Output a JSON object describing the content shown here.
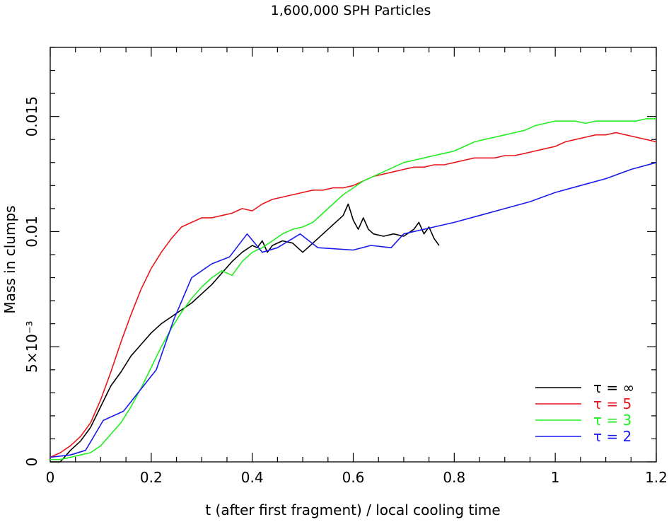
{
  "chart_data": {
    "type": "line",
    "title": "1,600,000 SPH Particles",
    "xlabel": "t (after first fragment) / local cooling time",
    "ylabel": "Mass in clumps",
    "xlim": [
      0,
      1.2
    ],
    "ylim": [
      0,
      0.018
    ],
    "x_ticks": [
      {
        "value": 0,
        "label": "0"
      },
      {
        "value": 0.2,
        "label": "0.2"
      },
      {
        "value": 0.4,
        "label": "0.4"
      },
      {
        "value": 0.6,
        "label": "0.6"
      },
      {
        "value": 0.8,
        "label": "0.8"
      },
      {
        "value": 1.0,
        "label": "1"
      },
      {
        "value": 1.2,
        "label": "1.2"
      }
    ],
    "y_ticks": [
      {
        "value": 0,
        "label": "0"
      },
      {
        "value": 0.005,
        "label": "5×10⁻³"
      },
      {
        "value": 0.01,
        "label": "0.01"
      },
      {
        "value": 0.015,
        "label": "0.015"
      }
    ],
    "grid": false,
    "legend_position": "bottom-right",
    "series": [
      {
        "name": "τ = ∞",
        "color": "#000000",
        "x": [
          0.0,
          0.02,
          0.04,
          0.06,
          0.08,
          0.1,
          0.12,
          0.14,
          0.16,
          0.18,
          0.2,
          0.22,
          0.24,
          0.26,
          0.28,
          0.3,
          0.32,
          0.34,
          0.36,
          0.38,
          0.4,
          0.41,
          0.42,
          0.43,
          0.44,
          0.46,
          0.48,
          0.49,
          0.5,
          0.52,
          0.54,
          0.56,
          0.58,
          0.59,
          0.6,
          0.61,
          0.62,
          0.63,
          0.64,
          0.66,
          0.68,
          0.7,
          0.72,
          0.73,
          0.74,
          0.75,
          0.76,
          0.77
        ],
        "values": [
          0.0,
          0.0,
          0.0005,
          0.0009,
          0.0015,
          0.0024,
          0.0033,
          0.0039,
          0.0046,
          0.0051,
          0.0056,
          0.006,
          0.0063,
          0.0066,
          0.0069,
          0.0073,
          0.0077,
          0.0082,
          0.0087,
          0.0091,
          0.0094,
          0.0093,
          0.0096,
          0.0091,
          0.0094,
          0.0096,
          0.0095,
          0.0093,
          0.0091,
          0.0095,
          0.0099,
          0.0103,
          0.0107,
          0.0112,
          0.0105,
          0.0101,
          0.0106,
          0.0101,
          0.0099,
          0.0098,
          0.0099,
          0.0098,
          0.0101,
          0.0104,
          0.0099,
          0.0102,
          0.0097,
          0.0094
        ]
      },
      {
        "name": "τ = 5",
        "color": "#e8161c",
        "x": [
          0.0,
          0.02,
          0.04,
          0.06,
          0.08,
          0.1,
          0.12,
          0.14,
          0.16,
          0.18,
          0.2,
          0.22,
          0.24,
          0.26,
          0.28,
          0.3,
          0.32,
          0.34,
          0.36,
          0.38,
          0.4,
          0.42,
          0.44,
          0.46,
          0.48,
          0.5,
          0.52,
          0.54,
          0.56,
          0.58,
          0.6,
          0.62,
          0.64,
          0.66,
          0.68,
          0.7,
          0.72,
          0.74,
          0.76,
          0.78,
          0.8,
          0.82,
          0.84,
          0.86,
          0.88,
          0.9,
          0.92,
          0.94,
          0.96,
          0.98,
          1.0,
          1.02,
          1.04,
          1.06,
          1.08,
          1.1,
          1.12,
          1.14,
          1.16,
          1.18,
          1.2
        ],
        "values": [
          0.0002,
          0.0004,
          0.0007,
          0.0011,
          0.0017,
          0.0027,
          0.0039,
          0.0052,
          0.0064,
          0.0075,
          0.0084,
          0.0091,
          0.0097,
          0.0102,
          0.0104,
          0.0106,
          0.0106,
          0.0107,
          0.0108,
          0.011,
          0.0109,
          0.0112,
          0.0114,
          0.0115,
          0.0116,
          0.0117,
          0.0118,
          0.0118,
          0.0119,
          0.0119,
          0.012,
          0.0122,
          0.0124,
          0.0125,
          0.0126,
          0.0127,
          0.0128,
          0.0128,
          0.0129,
          0.0129,
          0.013,
          0.0131,
          0.0132,
          0.0132,
          0.0132,
          0.0133,
          0.0133,
          0.0134,
          0.0135,
          0.0136,
          0.0137,
          0.0139,
          0.014,
          0.0141,
          0.0142,
          0.0142,
          0.0143,
          0.0142,
          0.0141,
          0.014,
          0.0139
        ]
      },
      {
        "name": "τ = 3",
        "color": "#22ee22",
        "x": [
          0.0,
          0.02,
          0.04,
          0.06,
          0.08,
          0.1,
          0.12,
          0.14,
          0.16,
          0.18,
          0.2,
          0.22,
          0.24,
          0.26,
          0.28,
          0.3,
          0.32,
          0.34,
          0.36,
          0.38,
          0.4,
          0.42,
          0.44,
          0.46,
          0.48,
          0.5,
          0.52,
          0.54,
          0.56,
          0.58,
          0.6,
          0.62,
          0.64,
          0.66,
          0.68,
          0.7,
          0.72,
          0.74,
          0.76,
          0.78,
          0.8,
          0.82,
          0.84,
          0.86,
          0.88,
          0.9,
          0.92,
          0.94,
          0.96,
          0.98,
          1.0,
          1.02,
          1.04,
          1.06,
          1.08,
          1.1,
          1.12,
          1.14,
          1.16,
          1.18,
          1.2
        ],
        "values": [
          0.0001,
          0.0001,
          0.0002,
          0.0003,
          0.0004,
          0.0007,
          0.0012,
          0.0017,
          0.0024,
          0.0032,
          0.0041,
          0.005,
          0.0058,
          0.0065,
          0.0071,
          0.0076,
          0.008,
          0.0083,
          0.0081,
          0.0087,
          0.0091,
          0.0093,
          0.0096,
          0.0099,
          0.0101,
          0.0102,
          0.0104,
          0.0108,
          0.0112,
          0.0116,
          0.0119,
          0.0122,
          0.0124,
          0.0126,
          0.0128,
          0.013,
          0.0131,
          0.0132,
          0.0133,
          0.0134,
          0.0135,
          0.0137,
          0.0139,
          0.014,
          0.0141,
          0.0142,
          0.0143,
          0.0144,
          0.0146,
          0.0147,
          0.0148,
          0.0148,
          0.0148,
          0.0147,
          0.0148,
          0.0148,
          0.0148,
          0.0148,
          0.0148,
          0.0149,
          0.0149
        ]
      },
      {
        "name": "τ = 2",
        "color": "#1a1aee",
        "x": [
          0.0,
          0.04,
          0.07,
          0.105,
          0.145,
          0.21,
          0.245,
          0.28,
          0.32,
          0.355,
          0.39,
          0.42,
          0.45,
          0.495,
          0.53,
          0.6,
          0.635,
          0.675,
          0.7,
          0.76,
          0.8,
          0.85,
          0.9,
          0.95,
          1.0,
          1.05,
          1.1,
          1.15,
          1.2
        ],
        "values": [
          0.0002,
          0.0003,
          0.0005,
          0.0018,
          0.0022,
          0.004,
          0.0062,
          0.008,
          0.0086,
          0.0089,
          0.0099,
          0.0091,
          0.0093,
          0.0099,
          0.0093,
          0.0092,
          0.0094,
          0.0093,
          0.0099,
          0.0102,
          0.0104,
          0.0107,
          0.011,
          0.0113,
          0.0117,
          0.012,
          0.0123,
          0.0127,
          0.013
        ]
      }
    ]
  }
}
